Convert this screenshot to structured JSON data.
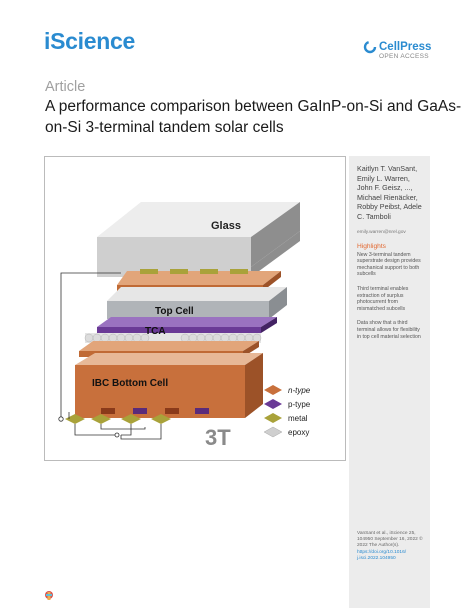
{
  "header": {
    "journal": "iScience",
    "publisher": "CellPress",
    "access": "OPEN ACCESS"
  },
  "article": {
    "type": "Article",
    "title": "A performance comparison between GaInP-on-Si and GaAs-on-Si 3-terminal tandem solar cells"
  },
  "figure": {
    "layers": {
      "glass": "Glass",
      "top_cell": "Top Cell",
      "tca": "TCA",
      "bottom_cell": "IBC Bottom Cell"
    },
    "config_label": "3T",
    "legend": [
      {
        "label": "n-type",
        "color": "#c8703c"
      },
      {
        "label": "p-type",
        "color": "#6a3a96"
      },
      {
        "label": "metal",
        "color": "#a9a23a"
      },
      {
        "label": "epoxy",
        "color": "#cfcfcf"
      }
    ]
  },
  "sidebar": {
    "authors": "Kaitlyn T. VanSant, Emily L. Warren, John F. Geisz, ..., Michael Rienäcker, Robby Peibst, Adele C. Tamboli",
    "email": "emily.warren@nrel.gov",
    "highlights_heading": "Highlights",
    "highlights": [
      "New 3-terminal tandem superstrate design provides mechanical support to both subcells",
      "Third terminal enables extraction of surplus photocurrent from mismatched subcells",
      "Data show that a third terminal allows for flexibility in top cell material selection"
    ],
    "citation": "VanSant et al., iScience 25, 104950 September 16, 2022 © 2022 The Author(s).",
    "doi": "https://doi.org/10.1016/ j.isci.2022.104950"
  }
}
